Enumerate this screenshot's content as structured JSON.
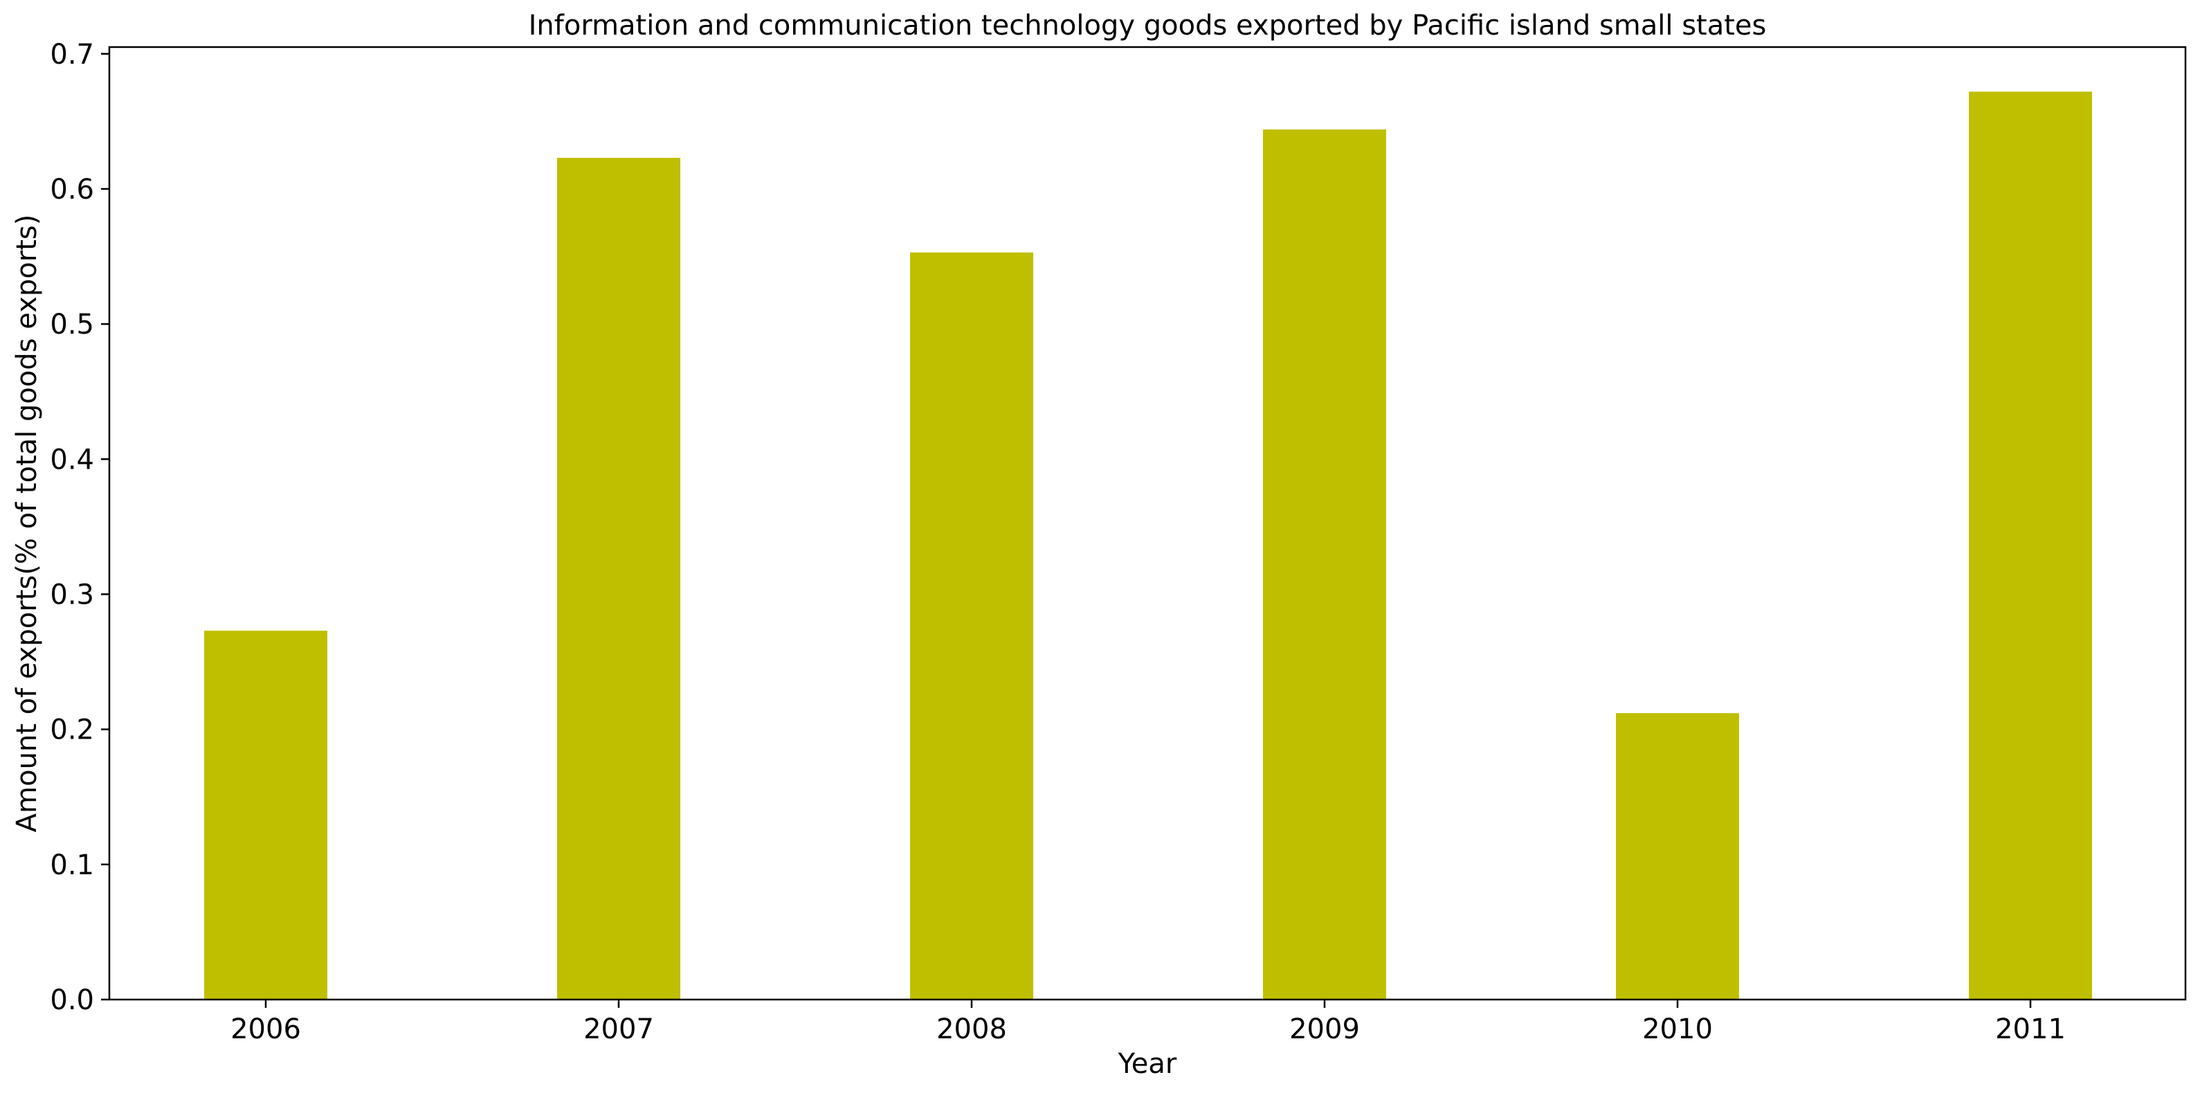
{
  "chart_data": {
    "type": "bar",
    "title": "Information and communication technology goods exported by Pacific island small states",
    "xlabel": "Year",
    "ylabel": "Amount of exports(% of total goods exports)",
    "categories": [
      "2006",
      "2007",
      "2008",
      "2009",
      "2010",
      "2011"
    ],
    "values": [
      0.273,
      0.623,
      0.553,
      0.644,
      0.212,
      0.672
    ],
    "ylim": [
      0,
      0.705
    ],
    "yticks": [
      0.0,
      0.1,
      0.2,
      0.3,
      0.4,
      0.5,
      0.6,
      0.7
    ],
    "ytick_labels": [
      "0.0",
      "0.1",
      "0.2",
      "0.3",
      "0.4",
      "0.5",
      "0.6",
      "0.7"
    ],
    "bar_color": "#bfbf00",
    "grid": false,
    "legend": "none"
  }
}
